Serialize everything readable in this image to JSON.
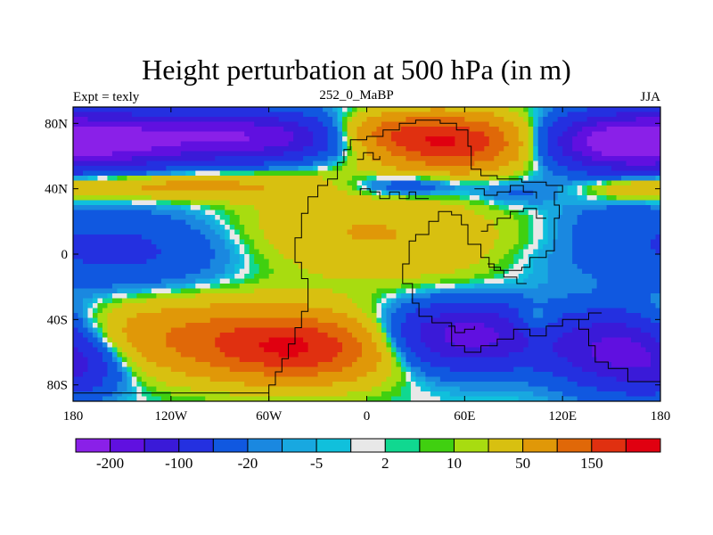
{
  "chart_data": {
    "type": "heatmap",
    "title": "Height perturbation at 500 hPa (in m)",
    "left_string": "Expt = texly",
    "center_string": "252_0_MaBP",
    "right_string": "JJA",
    "x_ticks": [
      "180",
      "120W",
      "60W",
      "0",
      "60E",
      "120E",
      "180"
    ],
    "x_tick_values": [
      -180,
      -120,
      -60,
      0,
      60,
      120,
      180
    ],
    "y_ticks": [
      "80N",
      "40N",
      "0",
      "40S",
      "80S"
    ],
    "y_tick_values": [
      80,
      40,
      0,
      -40,
      -80
    ],
    "xlim": [
      -180,
      180
    ],
    "ylim": [
      -90,
      90
    ],
    "colorbar": {
      "levels": [
        -200,
        -150,
        -100,
        -50,
        -20,
        -10,
        -5,
        -2,
        2,
        5,
        10,
        20,
        50,
        100,
        150,
        200
      ],
      "labels": [
        {
          "text": "-200",
          "index": 1
        },
        {
          "text": "-100",
          "index": 3
        },
        {
          "text": "-20",
          "index": 5
        },
        {
          "text": "-5",
          "index": 7
        },
        {
          "text": "2",
          "index": 9
        },
        {
          "text": "10",
          "index": 11
        },
        {
          "text": "50",
          "index": 13
        },
        {
          "text": "150",
          "index": 15
        }
      ],
      "colors": [
        "#8a20e8",
        "#6010e0",
        "#3a1ad8",
        "#2430e0",
        "#1058e0",
        "#1a88e0",
        "#18a8e0",
        "#10c0dc",
        "#e8e8e8",
        "#10d890",
        "#40d010",
        "#a8dc10",
        "#d8c010",
        "#e09808",
        "#e06808",
        "#e03010",
        "#e00010"
      ]
    },
    "field_centers": [
      {
        "lon": -150,
        "lat": 70,
        "amp": -190,
        "slon": 45,
        "slat": 12
      },
      {
        "lon": -60,
        "lat": 72,
        "amp": -170,
        "slon": 40,
        "slat": 10
      },
      {
        "lon": 150,
        "lat": 68,
        "amp": -190,
        "slon": 35,
        "slat": 12
      },
      {
        "lon": 55,
        "lat": 68,
        "amp": 190,
        "slon": 38,
        "slat": 12
      },
      {
        "lon": 10,
        "lat": 75,
        "amp": 80,
        "slon": 30,
        "slat": 8
      },
      {
        "lon": -120,
        "lat": 42,
        "amp": 70,
        "slon": 55,
        "slat": 6
      },
      {
        "lon": 165,
        "lat": 40,
        "amp": 40,
        "slon": 20,
        "slat": 5
      },
      {
        "lon": 25,
        "lat": 42,
        "amp": -60,
        "slon": 25,
        "slat": 5
      },
      {
        "lon": 90,
        "lat": 38,
        "amp": -30,
        "slon": 20,
        "slat": 6
      },
      {
        "lon": -150,
        "lat": 2,
        "amp": -60,
        "slon": 50,
        "slat": 18
      },
      {
        "lon": 150,
        "lat": 20,
        "amp": -20,
        "slon": 25,
        "slat": 10
      },
      {
        "lon": -20,
        "lat": 15,
        "amp": 45,
        "slon": 50,
        "slat": 20
      },
      {
        "lon": 50,
        "lat": 5,
        "amp": 25,
        "slon": 40,
        "slat": 20
      },
      {
        "lon": -110,
        "lat": -50,
        "amp": 90,
        "slon": 60,
        "slat": 16
      },
      {
        "lon": -40,
        "lat": -58,
        "amp": 170,
        "slon": 40,
        "slat": 14
      },
      {
        "lon": 60,
        "lat": -50,
        "amp": -180,
        "slon": 35,
        "slat": 14
      },
      {
        "lon": 155,
        "lat": -58,
        "amp": -180,
        "slon": 28,
        "slat": 16
      },
      {
        "lon": 103,
        "lat": -42,
        "amp": 60,
        "slon": 9,
        "slat": 7
      },
      {
        "lon": -175,
        "lat": -70,
        "amp": -60,
        "slon": 20,
        "slat": 12
      },
      {
        "lon": 110,
        "lat": -5,
        "amp": -10,
        "slon": 30,
        "slat": 10
      }
    ]
  }
}
